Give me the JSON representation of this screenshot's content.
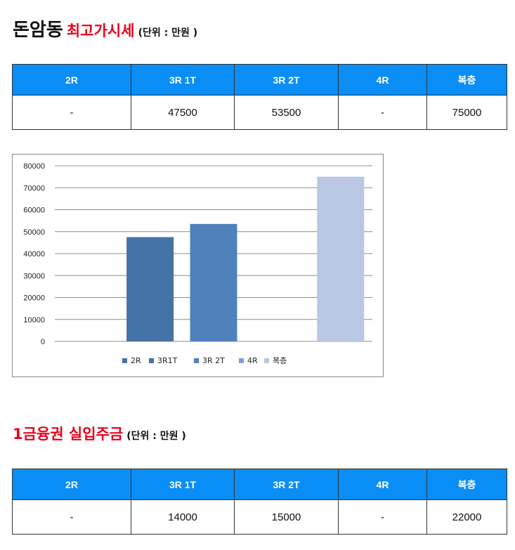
{
  "section1": {
    "title_main": "돈암동",
    "title_red": "최고가시세",
    "title_unit": "(단위 : 만원 )",
    "columns": [
      "2R",
      "3R 1T",
      "3R 2T",
      "4R",
      "복층"
    ],
    "values": [
      "-",
      "47500",
      "53500",
      "-",
      "75000"
    ]
  },
  "section2": {
    "title_red": "1금융권 실입주금",
    "title_unit": "(단위 : 만원 )",
    "columns": [
      "2R",
      "3R 1T",
      "3R 2T",
      "4R",
      "복층"
    ],
    "values": [
      "-",
      "14000",
      "15000",
      "-",
      "22000"
    ]
  },
  "chart_data": {
    "type": "bar",
    "categories": [
      "2R",
      "3R1T",
      "3R 2T",
      "4R",
      "복층"
    ],
    "series": [
      {
        "name": "2R",
        "value": null,
        "color": "#4572A7"
      },
      {
        "name": "3R1T",
        "value": 47500,
        "color": "#4572A7"
      },
      {
        "name": "3R 2T",
        "value": 53500,
        "color": "#4F81BD"
      },
      {
        "name": "4R",
        "value": null,
        "color": "#7F9FD3"
      },
      {
        "name": "복층",
        "value": 75000,
        "color": "#B9C7E2"
      }
    ],
    "yticks": [
      0,
      10000,
      20000,
      30000,
      40000,
      50000,
      60000,
      70000,
      80000
    ],
    "ylim": [
      0,
      80000
    ],
    "grid": true,
    "legend_position": "bottom"
  }
}
